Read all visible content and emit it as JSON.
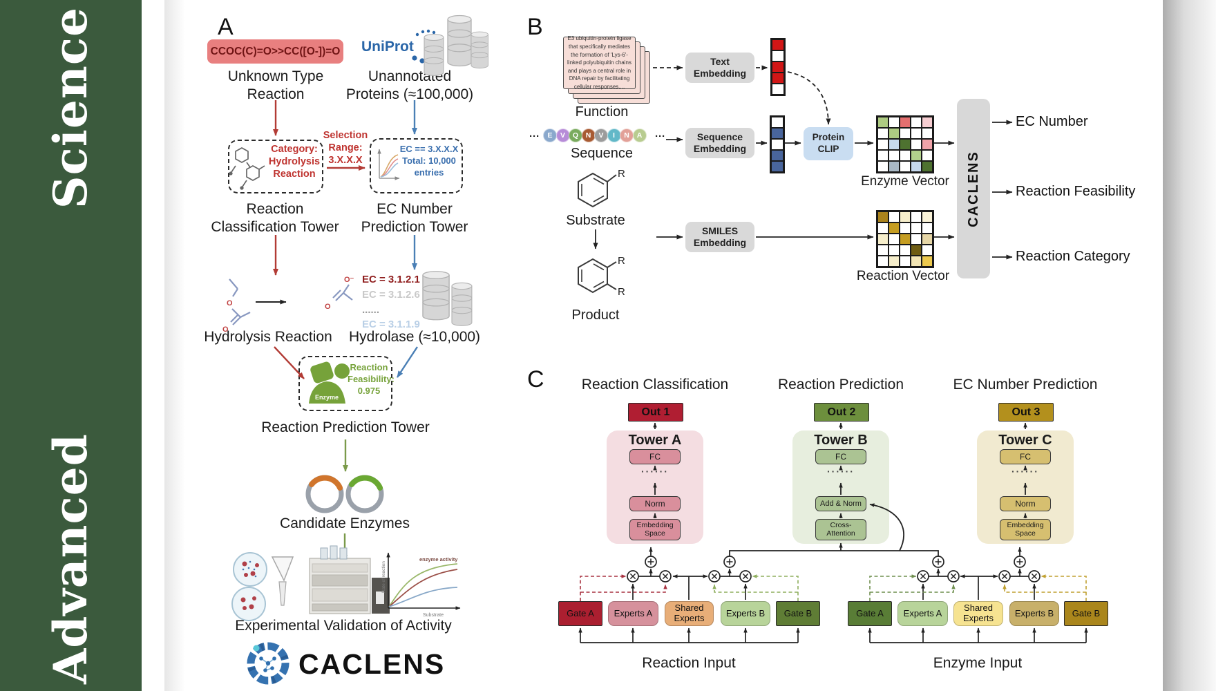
{
  "sidebar": {
    "title_words": [
      "Advanced",
      "Science"
    ],
    "bg": "#3b5a3d"
  },
  "panel_a": {
    "label": "A",
    "smiles": "CCOC(C)=O>>CC([O-])=O",
    "unknown_reaction_label": "Unknown Type Reaction",
    "uniprot_label": "UniProt",
    "unannotated_label": "Unannotated Proteins (≈100,000)",
    "category_text": "Category: Hydrolysis Reaction",
    "selection_text": "Selection Range: 3.X.X.X",
    "ec_filter_line1": "EC == 3.X.X.X",
    "ec_filter_line2": "Total: 10,000 entries",
    "classification_tower_label": "Reaction Classification Tower",
    "ec_tower_label": "EC Number Prediction Tower",
    "hydrolysis_label": "Hydrolysis Reaction",
    "ec_list": [
      {
        "text": "EC = 3.1.2.1",
        "color": "#8f1d1d",
        "bold": true
      },
      {
        "text": "EC = 3.1.2.6",
        "color": "#c9c9c9",
        "bold": true
      },
      {
        "text": "......",
        "color": "#9a9a9a",
        "bold": true
      },
      {
        "text": "EC = 3.1.1.9",
        "color": "#b9cfe6",
        "bold": true
      }
    ],
    "hydrolase_label": "Hydrolase (≈10,000)",
    "enzyme_badge": "Enzyme",
    "feasibility_text": "Reaction Feasibility: 0.975",
    "prediction_tower_label": "Reaction Prediction Tower",
    "candidate_label": "Candidate Enzymes",
    "activity_plot": {
      "ylabel": "Rate of reaction",
      "xlabel": "Substrate",
      "annotation": "enzyme activity"
    },
    "validation_label": "Experimental Validation of Activity",
    "brand": "CACLENS",
    "atom_o": "O",
    "atom_o_minus": "O⁻"
  },
  "panel_b": {
    "label": "B",
    "function_card_text": "E3 ubiquitin-protein ligase that specifically mediates the formation of 'Lys-6'-linked polyubiquitin chains and plays a central role in DNA repair by facilitating cellular responses....",
    "function_label": "Function",
    "ellipsis": "···",
    "sequence": {
      "label": "Sequence",
      "residues": [
        {
          "letter": "E",
          "color": "#8aa8cc"
        },
        {
          "letter": "V",
          "color": "#b78cd8"
        },
        {
          "letter": "Q",
          "color": "#7aab5e"
        },
        {
          "letter": "N",
          "color": "#a85a32"
        },
        {
          "letter": "V",
          "color": "#9c9c9c"
        },
        {
          "letter": "I",
          "color": "#62b8c8"
        },
        {
          "letter": "N",
          "color": "#e2a098"
        },
        {
          "letter": "A",
          "color": "#b8cc90"
        }
      ]
    },
    "substrate_label": "Substrate",
    "product_label": "Product",
    "r_label": "R",
    "text_embedding_label": "Text Embedding",
    "sequence_embedding_label": "Sequence Embedding",
    "smiles_embedding_label": "SMILES Embedding",
    "protein_clip_label": "Protein CLIP",
    "text_vector": [
      "#d11616",
      "#ffffff",
      "#d11616",
      "#d11616",
      "#ffffff"
    ],
    "sequence_vector": [
      "#ffffff",
      "#49659c",
      "#ffffff",
      "#49659c",
      "#49659c"
    ],
    "enzyme_matrix": [
      [
        "#aecb82",
        "#ffffff",
        "#e46f6f",
        "#ffffff",
        "#f6cdd1"
      ],
      [
        "#ffffff",
        "#aecb82",
        "#ffffff",
        "#ffffff",
        "#ffffff"
      ],
      [
        "#ffffff",
        "#c6d9ee",
        "#4e7230",
        "#ffffff",
        "#f0a3a9"
      ],
      [
        "#ffffff",
        "#ffffff",
        "#ffffff",
        "#b2d18c",
        "#ffffff"
      ],
      [
        "#ffffff",
        "#aab9c5",
        "#ffffff",
        "#c6d9ee",
        "#4e7230"
      ]
    ],
    "enzyme_matrix_label": "Enzyme Vector",
    "reaction_matrix": [
      [
        "#ab831c",
        "#ffffff",
        "#f6eecb",
        "#ffffff",
        "#faf3d8"
      ],
      [
        "#ffffff",
        "#c59d22",
        "#ffffff",
        "#ffffff",
        "#ffffff"
      ],
      [
        "#f6eecb",
        "#ffffff",
        "#c59d22",
        "#ffffff",
        "#e6d6a6"
      ],
      [
        "#ffffff",
        "#ffffff",
        "#ffffff",
        "#6e5c12",
        "#ffffff"
      ],
      [
        "#ffffff",
        "#f6eecb",
        "#ffffff",
        "#f2e5b4",
        "#ecc94e"
      ]
    ],
    "reaction_matrix_label": "Reaction Vector",
    "caclens_bar_label": "CACLENS",
    "outputs": [
      "EC Number",
      "Reaction Feasibility",
      "Reaction Category"
    ]
  },
  "panel_c": {
    "label": "C",
    "towers": [
      {
        "heading": "Reaction Classification",
        "out": "Out 1",
        "out_bg": "#b01e32",
        "name": "Tower A",
        "bg": "#f4dde1",
        "block_bg": "#d98f9c",
        "blocks": [
          "FC",
          "······",
          "Norm",
          "Embedding Space"
        ]
      },
      {
        "heading": "Reaction Prediction",
        "out": "Out 2",
        "out_bg": "#6d8f3d",
        "name": "Tower B",
        "bg": "#e7eede",
        "block_bg": "#abc393",
        "blocks": [
          "FC",
          "······",
          "Add & Norm",
          "Cross-Attention"
        ]
      },
      {
        "heading": "EC Number Prediction",
        "out": "Out 3",
        "out_bg": "#b3901d",
        "name": "Tower C",
        "bg": "#f1ead0",
        "block_bg": "#d6bf70",
        "blocks": [
          "FC",
          "······",
          "Norm",
          "Embedding Space"
        ]
      }
    ],
    "reaction_group": {
      "input_label": "Reaction Input",
      "boxes": [
        {
          "label": "Gate A",
          "bg": "#ab1f30"
        },
        {
          "label": "Experts A",
          "bg": "#d6919c"
        },
        {
          "label": "Shared Experts",
          "bg": "#e8ae78"
        },
        {
          "label": "Experts B",
          "bg": "#b8d49a"
        },
        {
          "label": "Gate B",
          "bg": "#5f7d35"
        }
      ]
    },
    "enzyme_group": {
      "input_label": "Enzyme Input",
      "boxes": [
        {
          "label": "Gate A",
          "bg": "#597d36"
        },
        {
          "label": "Experts A",
          "bg": "#b8d49a"
        },
        {
          "label": "Shared Experts",
          "bg": "#f6e391"
        },
        {
          "label": "Experts B",
          "bg": "#c8b06a"
        },
        {
          "label": "Gate B",
          "bg": "#aa861c"
        }
      ]
    }
  }
}
